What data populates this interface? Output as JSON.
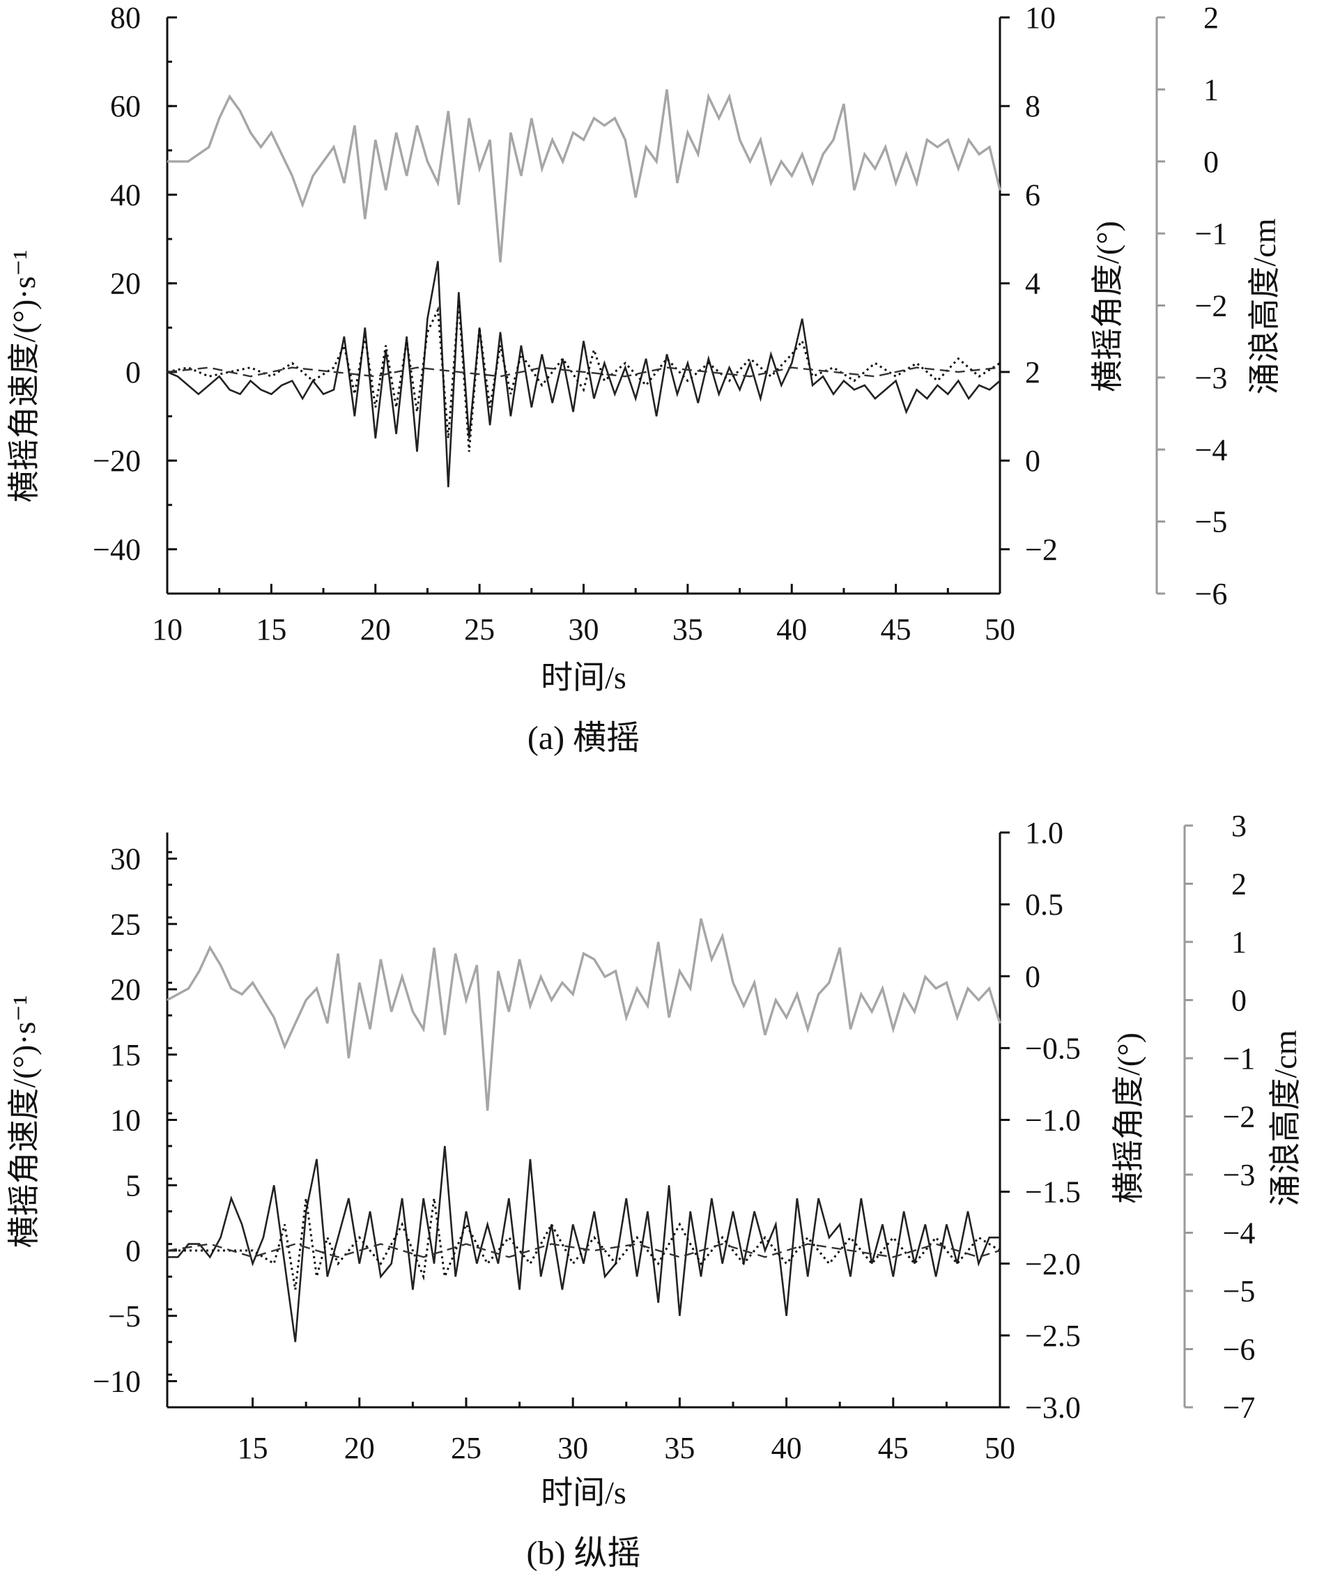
{
  "chart_data": [
    {
      "type": "line",
      "caption": "(a) 横摇",
      "xlabel": "时间/s",
      "ylabel_left": "横摇角速度/(°)·s⁻¹",
      "ylabel_right": "横摇角度/(°)",
      "ylabel_far_right": "涌浪高度/cm",
      "xlim": [
        10,
        50
      ],
      "ylim_left": [
        -50,
        80
      ],
      "ylim_right": [
        -3,
        10
      ],
      "ylim_far_right": [
        -6,
        2
      ],
      "xticks": [
        10,
        15,
        20,
        25,
        30,
        35,
        40,
        45,
        50
      ],
      "yticks_left": [
        "80",
        "60",
        "40",
        "20",
        "0",
        "−20",
        "−40"
      ],
      "yticks_right": [
        "10",
        "8",
        "6",
        "4",
        "2",
        "0",
        "−2"
      ],
      "yticks_far_right": [
        "2",
        "1",
        "0",
        "−1",
        "−2",
        "−3",
        "−4",
        "−5",
        "−6"
      ],
      "series": [
        {
          "style": "solid-black",
          "axis": "left",
          "x": [
            10,
            10.5,
            11,
            11.5,
            12,
            12.5,
            13,
            13.5,
            14,
            14.5,
            15,
            15.5,
            16,
            16.5,
            17,
            17.5,
            18,
            18.5,
            19,
            19.5,
            20,
            20.5,
            21,
            21.5,
            22,
            22.5,
            23,
            23.5,
            24,
            24.5,
            25,
            25.5,
            26,
            26.5,
            27,
            27.5,
            28,
            28.5,
            29,
            29.5,
            30,
            30.5,
            31,
            31.5,
            32,
            32.5,
            33,
            33.5,
            34,
            34.5,
            35,
            35.5,
            36,
            36.5,
            37,
            37.5,
            38,
            38.5,
            39,
            39.5,
            40,
            40.5,
            41,
            41.5,
            42,
            42.5,
            43,
            43.5,
            44,
            44.5,
            45,
            45.5,
            46,
            46.5,
            47,
            47.5,
            48,
            48.5,
            49,
            49.5,
            50
          ],
          "y": [
            0,
            -1,
            -3,
            -5,
            -3,
            -1,
            -4,
            -5,
            -2,
            -4,
            -5,
            -3,
            -2,
            -6,
            -2,
            -5,
            -4,
            8,
            -10,
            10,
            -15,
            5,
            -14,
            8,
            -18,
            12,
            25,
            -26,
            18,
            -15,
            10,
            -12,
            9,
            -10,
            6,
            -8,
            4,
            -7,
            3,
            -9,
            7,
            -6,
            2,
            -5,
            1,
            -6,
            3,
            -10,
            4,
            -5,
            2,
            -7,
            3,
            -5,
            1,
            -4,
            2,
            -6,
            4,
            -3,
            2,
            12,
            -3,
            -1,
            -5,
            -2,
            -4,
            -3,
            -6,
            -4,
            -2,
            -9,
            -4,
            -6,
            -3,
            -5,
            -2,
            -6,
            -3,
            -4,
            -2
          ]
        },
        {
          "style": "dotted",
          "axis": "left",
          "x": [
            10,
            11,
            12,
            13,
            14,
            15,
            16,
            17,
            18,
            18.5,
            19,
            19.5,
            20,
            20.5,
            21,
            21.5,
            22,
            22.5,
            23,
            23.5,
            24,
            24.5,
            25,
            25.5,
            26,
            26.5,
            27,
            28,
            29,
            30,
            30.5,
            31,
            32,
            33,
            34,
            35,
            36,
            37,
            38,
            39,
            40,
            40.5,
            41,
            42,
            43,
            44,
            45,
            46,
            47,
            48,
            49,
            50
          ],
          "y": [
            0,
            1,
            -1,
            0,
            1,
            -1,
            2,
            -2,
            1,
            6,
            -5,
            8,
            -8,
            6,
            -8,
            7,
            -9,
            9,
            14,
            -15,
            16,
            -18,
            10,
            -8,
            6,
            -5,
            4,
            -3,
            3,
            -4,
            5,
            -2,
            2,
            -3,
            3,
            -2,
            2,
            -2,
            3,
            -1,
            4,
            7,
            -1,
            1,
            -2,
            2,
            -1,
            2,
            -2,
            3,
            -1,
            2
          ]
        },
        {
          "style": "dashed",
          "axis": "left",
          "x": [
            10,
            12,
            14,
            16,
            18,
            20,
            22,
            24,
            26,
            28,
            30,
            32,
            34,
            36,
            38,
            40,
            42,
            44,
            46,
            48,
            50
          ],
          "y": [
            0,
            1,
            -1,
            1,
            0,
            -1,
            1,
            0,
            -1,
            1,
            0,
            -1,
            1,
            0,
            -1,
            1,
            0,
            -1,
            1,
            0,
            1
          ]
        },
        {
          "style": "solid-grey",
          "axis": "far_right",
          "x": [
            10,
            11,
            12,
            12.5,
            13,
            13.5,
            14,
            14.5,
            15,
            15.5,
            16,
            16.5,
            17,
            17.5,
            18,
            18.5,
            19,
            19.5,
            20,
            20.5,
            21,
            21.5,
            22,
            22.5,
            23,
            23.5,
            24,
            24.5,
            25,
            25.5,
            26,
            26.5,
            27,
            27.5,
            28,
            28.5,
            29,
            29.5,
            30,
            30.5,
            31,
            31.5,
            32,
            32.5,
            33,
            33.5,
            34,
            34.5,
            35,
            35.5,
            36,
            36.5,
            37,
            37.5,
            38,
            38.5,
            39,
            39.5,
            40,
            40.5,
            41,
            41.5,
            42,
            42.5,
            43,
            43.5,
            44,
            44.5,
            45,
            45.5,
            46,
            46.5,
            47,
            47.5,
            48,
            48.5,
            49,
            49.5,
            50
          ],
          "y": [
            0,
            0,
            0.2,
            0.6,
            0.9,
            0.7,
            0.4,
            0.2,
            0.4,
            0.1,
            -0.2,
            -0.6,
            -0.2,
            0,
            0.2,
            -0.3,
            0.5,
            -0.8,
            0.3,
            -0.4,
            0.4,
            -0.2,
            0.5,
            0,
            -0.3,
            0.7,
            -0.6,
            0.6,
            -0.1,
            0.3,
            -1.4,
            0.4,
            -0.2,
            0.6,
            -0.1,
            0.3,
            0,
            0.4,
            0.3,
            0.6,
            0.5,
            0.6,
            0.3,
            -0.5,
            0.2,
            0,
            1.0,
            -0.3,
            0.4,
            0.1,
            0.9,
            0.6,
            0.9,
            0.3,
            0,
            0.3,
            -0.3,
            0,
            -0.2,
            0.1,
            -0.3,
            0.1,
            0.3,
            0.8,
            -0.4,
            0.1,
            -0.1,
            0.2,
            -0.3,
            0.1,
            -0.3,
            0.3,
            0.2,
            0.3,
            -0.1,
            0.3,
            0.1,
            0.2,
            -0.4
          ]
        }
      ]
    },
    {
      "type": "line",
      "caption": "(b) 纵摇",
      "xlabel": "时间/s",
      "ylabel_left": "横摇角速度/(°)·s⁻¹",
      "ylabel_right": "横摇角度/(°)",
      "ylabel_far_right": "涌浪高度/cm",
      "xlim": [
        11,
        50
      ],
      "ylim_left": [
        -12,
        32
      ],
      "ylim_right": [
        -3.0,
        1.0
      ],
      "ylim_far_right": [
        -7,
        3
      ],
      "xticks": [
        15,
        20,
        25,
        30,
        35,
        40,
        45,
        50
      ],
      "yticks_left": [
        "30",
        "25",
        "20",
        "15",
        "10",
        "5",
        "0",
        "−5",
        "−10"
      ],
      "yticks_right": [
        "1.0",
        "0.5",
        "0",
        "−0.5",
        "−1.0",
        "−1.5",
        "−2.0",
        "−2.5",
        "−3.0"
      ],
      "yticks_far_right": [
        "3",
        "2",
        "1",
        "0",
        "−1",
        "−2",
        "−3",
        "−4",
        "−5",
        "−6",
        "−7"
      ],
      "series": [
        {
          "style": "solid-black",
          "axis": "left",
          "x": [
            11,
            11.5,
            12,
            12.5,
            13,
            13.5,
            14,
            14.5,
            15,
            15.5,
            16,
            16.5,
            17,
            17.5,
            18,
            18.5,
            19,
            19.5,
            20,
            20.5,
            21,
            21.5,
            22,
            22.5,
            23,
            23.5,
            24,
            24.5,
            25,
            25.5,
            26,
            26.5,
            27,
            27.5,
            28,
            28.5,
            29,
            29.5,
            30,
            30.5,
            31,
            31.5,
            32,
            32.5,
            33,
            33.5,
            34,
            34.5,
            35,
            35.5,
            36,
            36.5,
            37,
            37.5,
            38,
            38.5,
            39,
            39.5,
            40,
            40.5,
            41,
            41.5,
            42,
            42.5,
            43,
            43.5,
            44,
            44.5,
            45,
            45.5,
            46,
            46.5,
            47,
            47.5,
            48,
            48.5,
            49,
            49.5,
            50
          ],
          "y": [
            -0.5,
            -0.5,
            0.5,
            0.5,
            -0.5,
            1,
            4,
            2,
            -1,
            1,
            5,
            -1,
            -7,
            3,
            7,
            -2,
            1,
            4,
            -1,
            3,
            -2,
            -1,
            4,
            -3,
            4,
            -1,
            8,
            -2,
            3,
            -1,
            2,
            -1,
            4,
            -3,
            7,
            -2,
            2,
            -3,
            2,
            -1,
            3,
            -2,
            -1,
            4,
            -2,
            3,
            -4,
            5,
            -5,
            3,
            -2,
            4,
            -1,
            3,
            -1,
            3,
            0,
            2,
            -5,
            4,
            -2,
            4,
            1,
            2,
            -2,
            4,
            -1,
            2,
            -2,
            3,
            -1,
            2,
            -2,
            2,
            -1,
            3,
            -1,
            1,
            1
          ]
        },
        {
          "style": "dotted",
          "axis": "left",
          "x": [
            11,
            12,
            13,
            14,
            15,
            16,
            16.5,
            17,
            17.5,
            18,
            18.5,
            19,
            20,
            21,
            22,
            23,
            23.5,
            24,
            25,
            26,
            27,
            28,
            29,
            30,
            31,
            32,
            33,
            34,
            35,
            36,
            37,
            38,
            39,
            40,
            41,
            42,
            43,
            44,
            45,
            46,
            47,
            48,
            49,
            50
          ],
          "y": [
            0,
            0,
            0,
            0,
            0,
            -1,
            2,
            -3,
            4,
            -2,
            1,
            -1,
            1,
            -1,
            2,
            -2,
            4,
            -2,
            2,
            -1,
            1,
            -1,
            2,
            -1,
            1,
            -1,
            1,
            -1,
            2,
            -1,
            1,
            -1,
            1,
            -1,
            1,
            -1,
            1,
            -1,
            1,
            -1,
            1,
            -1,
            1,
            0
          ]
        },
        {
          "style": "dashed",
          "axis": "left",
          "x": [
            11,
            13,
            15,
            17,
            19,
            21,
            23,
            25,
            27,
            29,
            31,
            33,
            35,
            37,
            39,
            41,
            43,
            45,
            47,
            49,
            50
          ],
          "y": [
            0,
            0.5,
            -0.5,
            0.5,
            -0.5,
            0.5,
            -0.5,
            0.5,
            -0.5,
            0.5,
            0,
            0.5,
            -0.5,
            0.5,
            -0.5,
            0.5,
            0,
            -0.5,
            0.5,
            -0.5,
            0
          ]
        },
        {
          "style": "solid-grey",
          "axis": "far_right",
          "x": [
            11,
            12,
            12.5,
            13,
            13.5,
            14,
            14.5,
            15,
            15.5,
            16,
            16.5,
            17,
            17.5,
            18,
            18.5,
            19,
            19.5,
            20,
            20.5,
            21,
            21.5,
            22,
            22.5,
            23,
            23.5,
            24,
            24.5,
            25,
            25.5,
            26,
            26.5,
            27,
            27.5,
            28,
            28.5,
            29,
            29.5,
            30,
            30.5,
            31,
            31.5,
            32,
            32.5,
            33,
            33.5,
            34,
            34.5,
            35,
            35.5,
            36,
            36.5,
            37,
            37.5,
            38,
            38.5,
            39,
            39.5,
            40,
            40.5,
            41,
            41.5,
            42,
            42.5,
            43,
            43.5,
            44,
            44.5,
            45,
            45.5,
            46,
            46.5,
            47,
            47.5,
            48,
            48.5,
            49,
            49.5,
            50
          ],
          "y": [
            0,
            0.2,
            0.5,
            0.9,
            0.6,
            0.2,
            0.1,
            0.3,
            0,
            -0.3,
            -0.8,
            -0.4,
            0,
            0.2,
            -0.4,
            0.8,
            -1,
            0.3,
            -0.5,
            0.7,
            -0.2,
            0.4,
            -0.2,
            -0.5,
            0.9,
            -0.6,
            0.8,
            0,
            0.6,
            -1.9,
            0.5,
            -0.2,
            0.7,
            -0.1,
            0.4,
            0,
            0.3,
            0.1,
            0.8,
            0.7,
            0.4,
            0.5,
            -0.3,
            0.2,
            -0.1,
            1.0,
            -0.3,
            0.5,
            0.2,
            1.4,
            0.7,
            1.1,
            0.3,
            -0.1,
            0.3,
            -0.6,
            0,
            -0.3,
            0.1,
            -0.5,
            0.1,
            0.3,
            0.9,
            -0.5,
            0.1,
            -0.2,
            0.2,
            -0.5,
            0.1,
            -0.2,
            0.4,
            0.2,
            0.3,
            -0.3,
            0.2,
            0,
            0.2,
            -0.4
          ]
        }
      ]
    }
  ]
}
